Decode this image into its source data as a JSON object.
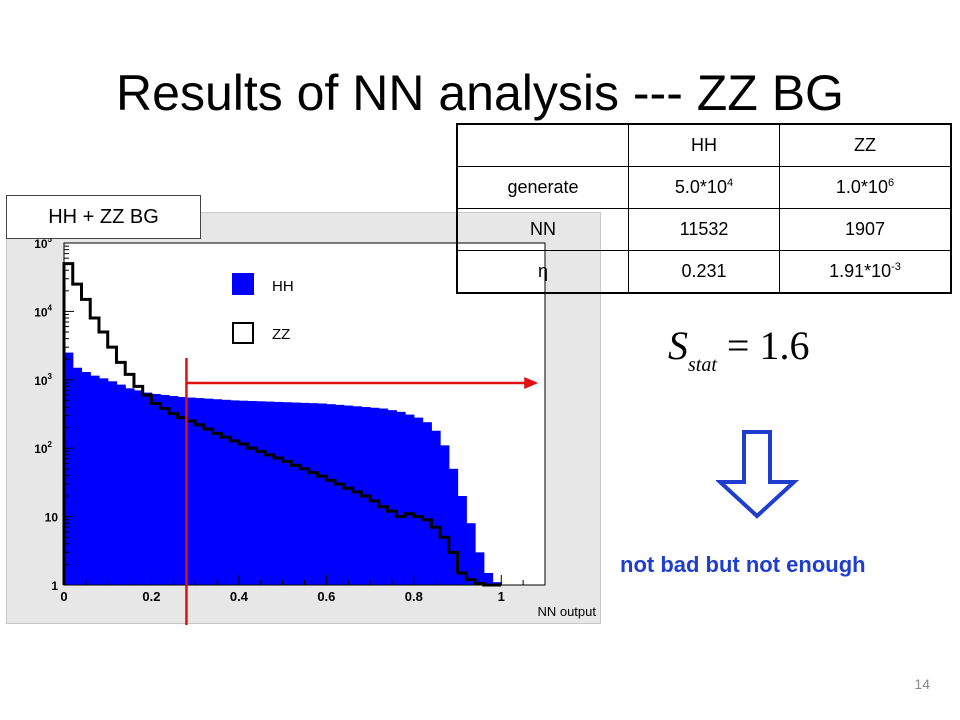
{
  "slide": {
    "title": "Results of NN analysis --- ZZ BG",
    "page_number": "14"
  },
  "histogram_label": "HH + ZZ BG",
  "legend": [
    {
      "name": "HH",
      "style": "filled",
      "color": "#0000ff"
    },
    {
      "name": "ZZ",
      "style": "outline",
      "color": "#000000"
    }
  ],
  "x_axis_title": "NN output",
  "table": {
    "headers": [
      "",
      "HH",
      "ZZ"
    ],
    "rows": [
      {
        "label": "generate",
        "hh_base": "5.0*10",
        "hh_exp": "4",
        "zz_base": "1.0*10",
        "zz_exp": "6"
      },
      {
        "label": "NN",
        "hh_base": "11532",
        "hh_exp": "",
        "zz_base": "1907",
        "zz_exp": ""
      },
      {
        "label": "η",
        "hh_base": "0.231",
        "hh_exp": "",
        "zz_base": "1.91*10",
        "zz_exp": "-3"
      }
    ]
  },
  "formula": {
    "symbol": "S",
    "subscript": "stat",
    "value": "= 1.6"
  },
  "conclusion": "not bad but not enough",
  "colors": {
    "hh_fill": "#0000ff",
    "cut_line": "#e01010",
    "conclusion_text": "#1f3ed0",
    "frame_bg": "#e7e7e7"
  },
  "chart_data": {
    "type": "histogram",
    "x_axis_title": "NN output",
    "xlim": [
      0,
      1.1
    ],
    "ylim": [
      1,
      100000
    ],
    "y_scale": "log",
    "x_ticks": [
      "0",
      "0.2",
      "0.4",
      "0.6",
      "0.8",
      "1"
    ],
    "y_ticks": [
      {
        "base": "10",
        "exp": "5"
      },
      {
        "base": "10",
        "exp": "4"
      },
      {
        "base": "10",
        "exp": "3"
      },
      {
        "base": "10",
        "exp": "2"
      },
      {
        "base": "10",
        "exp": ""
      },
      {
        "base": "1",
        "exp": ""
      }
    ],
    "bin_width": 0.02,
    "series": [
      {
        "name": "HH",
        "style": "filled",
        "color": "#0000ff",
        "values": [
          2500,
          1500,
          1300,
          1150,
          1050,
          950,
          850,
          750,
          700,
          650,
          620,
          600,
          580,
          560,
          550,
          540,
          530,
          520,
          510,
          500,
          495,
          490,
          485,
          480,
          475,
          470,
          465,
          460,
          455,
          450,
          440,
          430,
          420,
          410,
          400,
          390,
          380,
          360,
          340,
          310,
          280,
          240,
          180,
          110,
          50,
          20,
          8,
          3,
          1.5,
          1.1,
          0,
          0,
          0,
          0,
          0
        ]
      },
      {
        "name": "ZZ",
        "style": "outline",
        "color": "#000000",
        "values": [
          50000,
          25000,
          15000,
          8000,
          5000,
          3000,
          1800,
          1200,
          800,
          600,
          450,
          380,
          320,
          280,
          250,
          220,
          190,
          165,
          145,
          128,
          115,
          100,
          90,
          80,
          72,
          64,
          56,
          50,
          44,
          39,
          34,
          30,
          26,
          23,
          20,
          17,
          14,
          12,
          10,
          11,
          10,
          9,
          7,
          5,
          3,
          1.5,
          1.2,
          1.05,
          1,
          1,
          0,
          0,
          0,
          0,
          0
        ]
      }
    ],
    "annotations": [
      {
        "type": "vertical-line",
        "x": 0.28,
        "color": "#e01010"
      },
      {
        "type": "arrow",
        "x_from": 0.28,
        "x_to": 1.08,
        "y": 1000,
        "color": "#e01010"
      }
    ]
  }
}
